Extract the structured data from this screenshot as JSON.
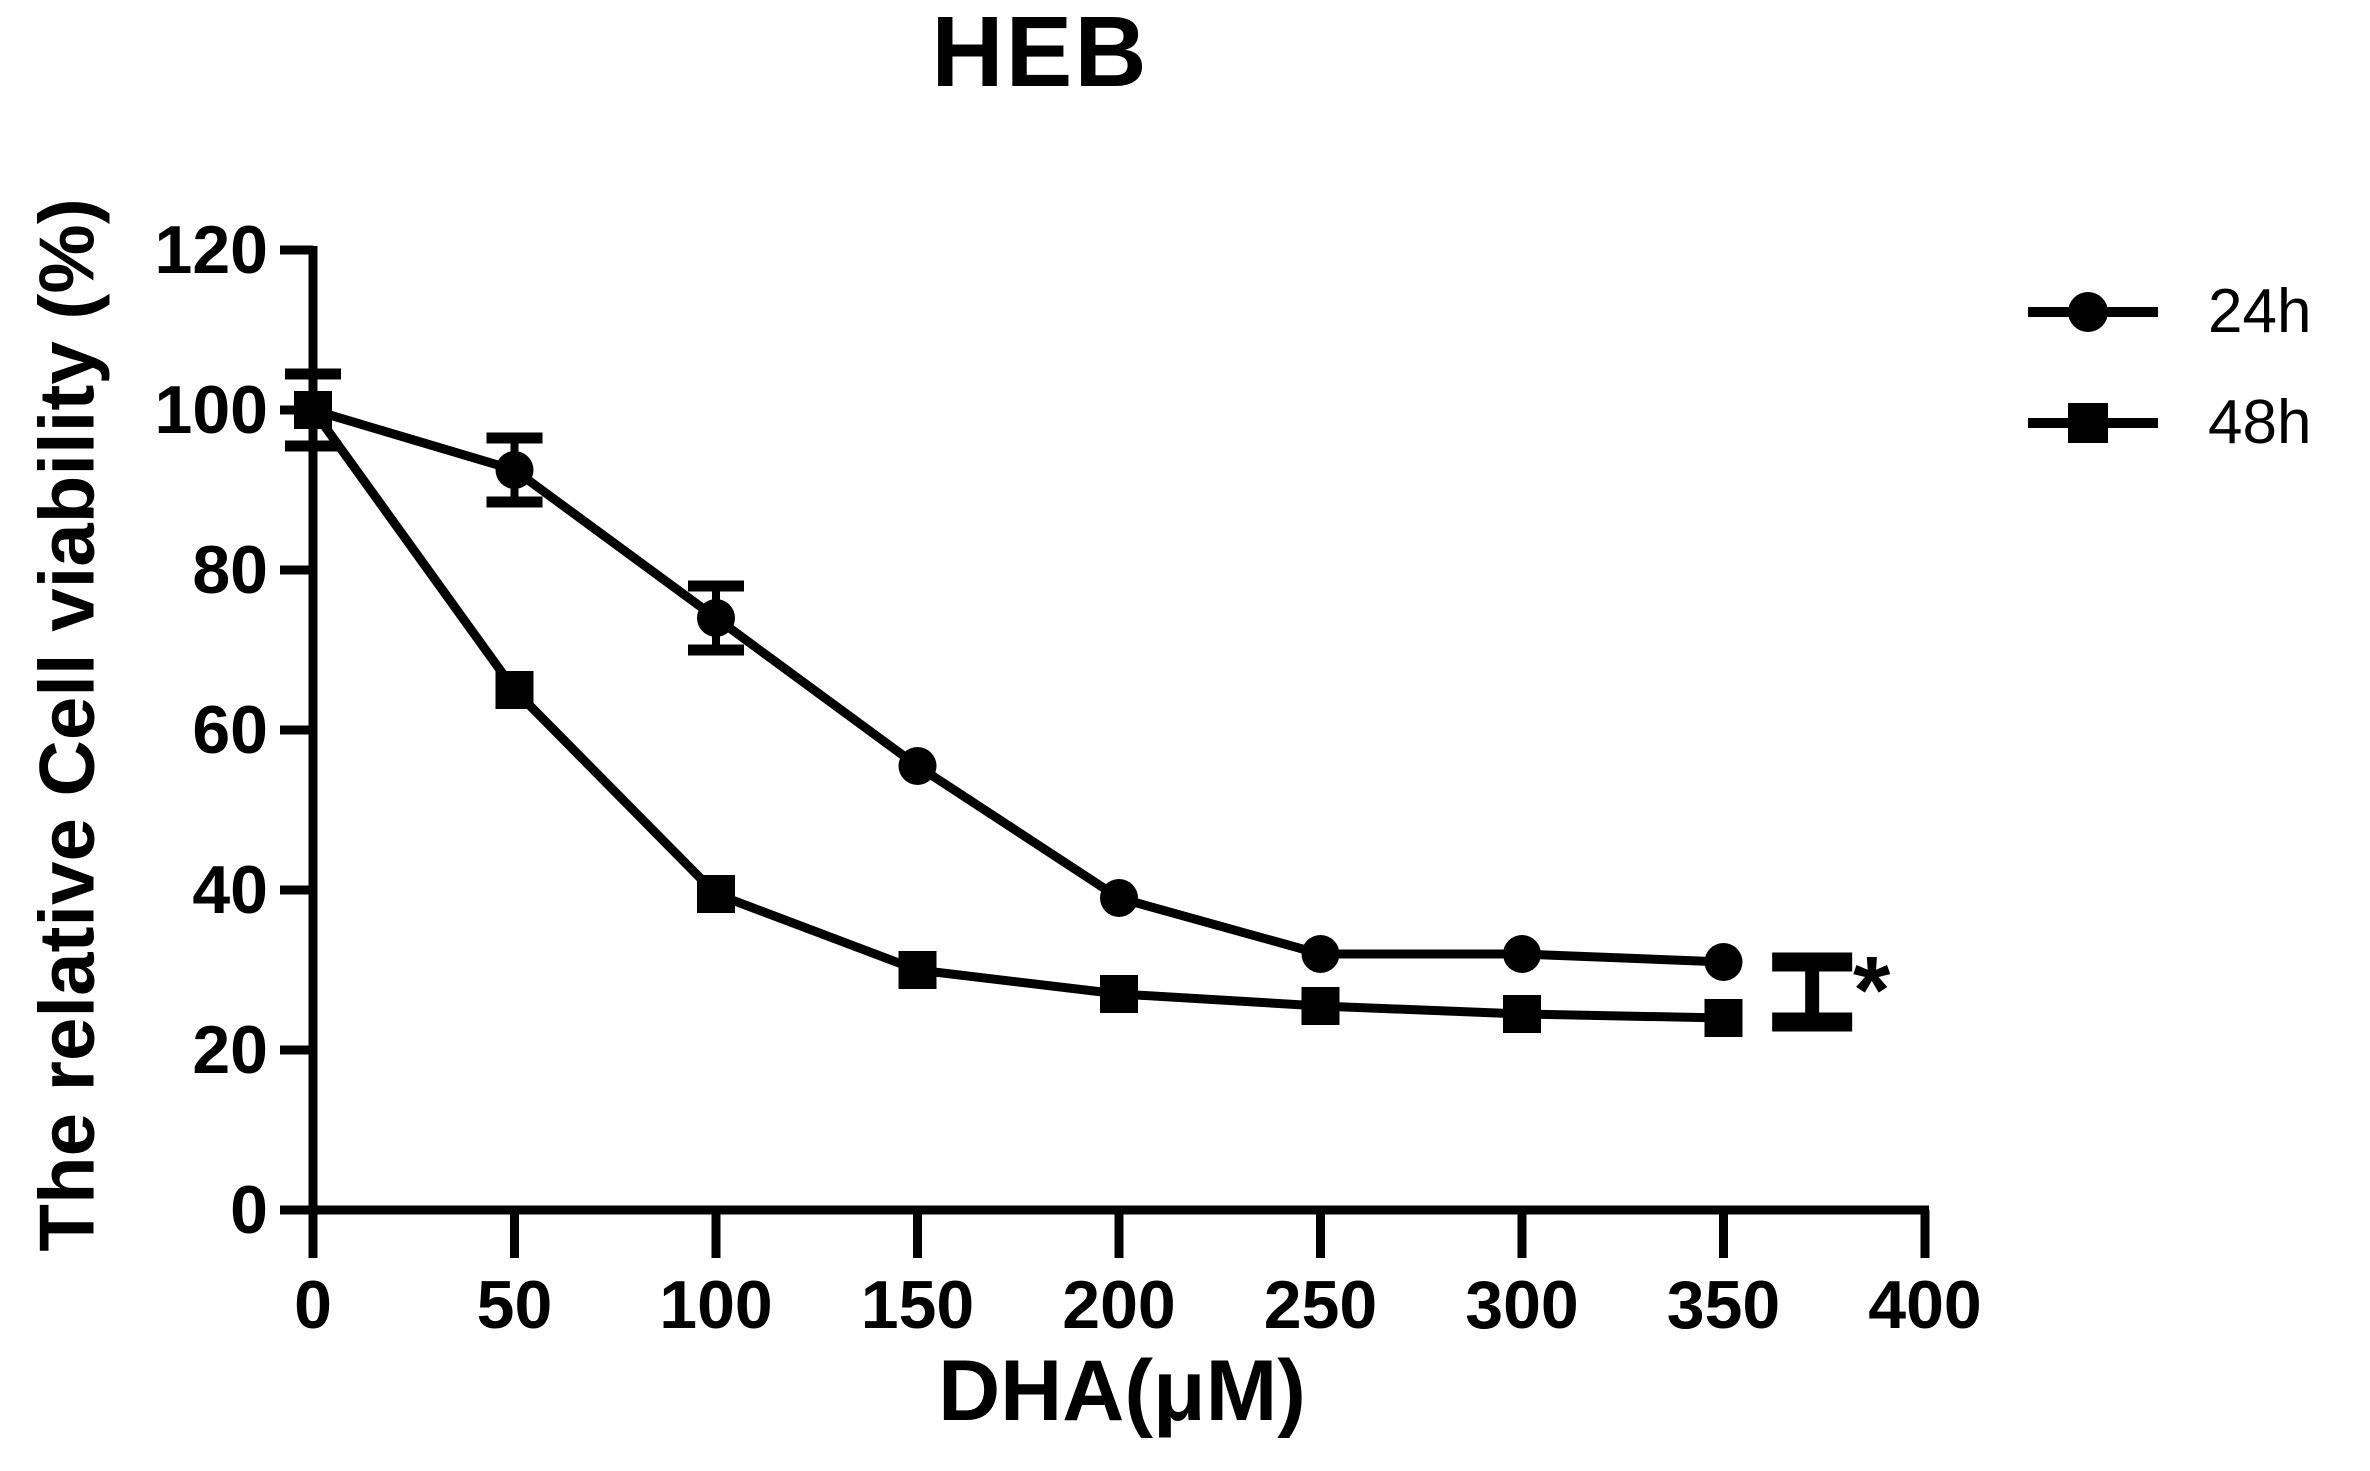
{
  "title": "HEB",
  "chart_data": {
    "type": "line",
    "title": "HEB",
    "xlabel": "DHA(μM)",
    "ylabel": "The relative Cell viability (%)",
    "xlim": [
      0,
      400
    ],
    "ylim": [
      0,
      120
    ],
    "xticks": [
      0,
      50,
      100,
      150,
      200,
      250,
      300,
      350,
      400
    ],
    "yticks": [
      0,
      20,
      40,
      60,
      80,
      100,
      120
    ],
    "grid": false,
    "legend_position": "top-right",
    "x": [
      0,
      50,
      100,
      150,
      200,
      250,
      300,
      350
    ],
    "series": [
      {
        "name": "24h",
        "marker": "circle",
        "color": "#000000",
        "values": [
          100,
          92.5,
          74,
          55.5,
          39,
          32,
          32,
          31
        ],
        "errors": [
          4.5,
          4,
          4,
          0,
          0,
          0,
          0,
          0
        ]
      },
      {
        "name": "48h",
        "marker": "square",
        "color": "#000000",
        "values": [
          100,
          65,
          39.5,
          30,
          27,
          25.5,
          24.5,
          24
        ],
        "errors": [
          4.5,
          0,
          0,
          0,
          0,
          0,
          0,
          0
        ]
      }
    ],
    "annotation": {
      "symbol": "*",
      "bracket_x": 372,
      "bracket_y_top": 31,
      "bracket_y_bottom": 23.5
    }
  },
  "legend": {
    "items": [
      {
        "label": "24h",
        "marker": "circle"
      },
      {
        "label": "48h",
        "marker": "square"
      }
    ]
  },
  "colors": {
    "foreground": "#000000",
    "background": "#ffffff"
  }
}
